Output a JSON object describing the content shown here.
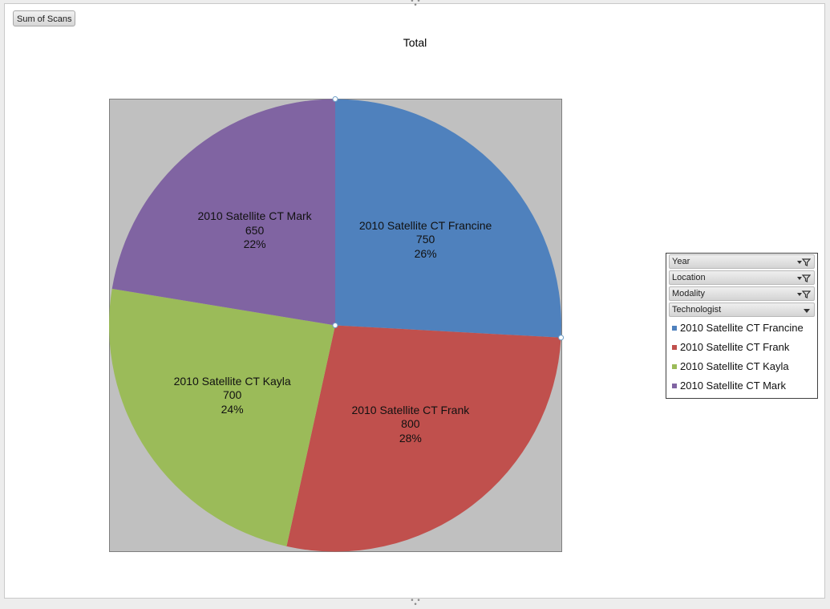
{
  "field_button": {
    "label": "Sum of Scans"
  },
  "chart_data": {
    "type": "pie",
    "title": "Total",
    "categories": [
      "2010 Satellite CT Francine",
      "2010 Satellite CT Frank",
      "2010 Satellite CT Kayla",
      "2010 Satellite CT Mark"
    ],
    "values": [
      750,
      800,
      700,
      650
    ],
    "percent_labels": [
      "26%",
      "28%",
      "24%",
      "22%"
    ],
    "colors": [
      "#4f81bd",
      "#c0504d",
      "#9bbb59",
      "#8064a2"
    ],
    "plot_background": "#c0c0c0",
    "start_angle_deg": 0,
    "direction": "clockwise",
    "legend_position": "right"
  },
  "legend": {
    "filters": [
      {
        "label": "Year",
        "control": "dropdown-filter-icon"
      },
      {
        "label": "Location",
        "control": "dropdown-filter-icon"
      },
      {
        "label": "Modality",
        "control": "dropdown-filter-icon"
      },
      {
        "label": "Technologist",
        "control": "dropdown-arrow-icon"
      }
    ]
  }
}
